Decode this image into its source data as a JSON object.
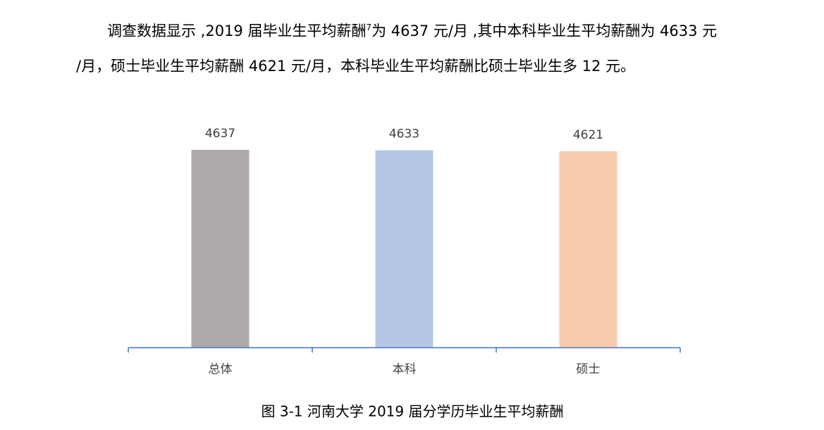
{
  "paragraph": {
    "line1_before_note": "调查数据显示 ,2019 届毕业生平均薪酬",
    "note": "7",
    "line1_after_note": "为 4637 元/月 ,其中本科毕业生平均薪酬为 4633 元",
    "line2": "/月，硕士毕业生平均薪酬 4621 元/月，本科毕业生平均薪酬比硕士毕业生多 12 元。"
  },
  "chart_data": {
    "type": "bar",
    "categories": [
      "总体",
      "本科",
      "硕士"
    ],
    "values": [
      4637,
      4633,
      4621
    ],
    "colors": [
      "#aeaaaa",
      "#b4c7e7",
      "#f8cbad"
    ],
    "ylim": [
      2400,
      4700
    ],
    "axis_color": "#4472c4"
  },
  "caption": "图 3-1 河南大学 2019 届分学历毕业生平均薪酬"
}
